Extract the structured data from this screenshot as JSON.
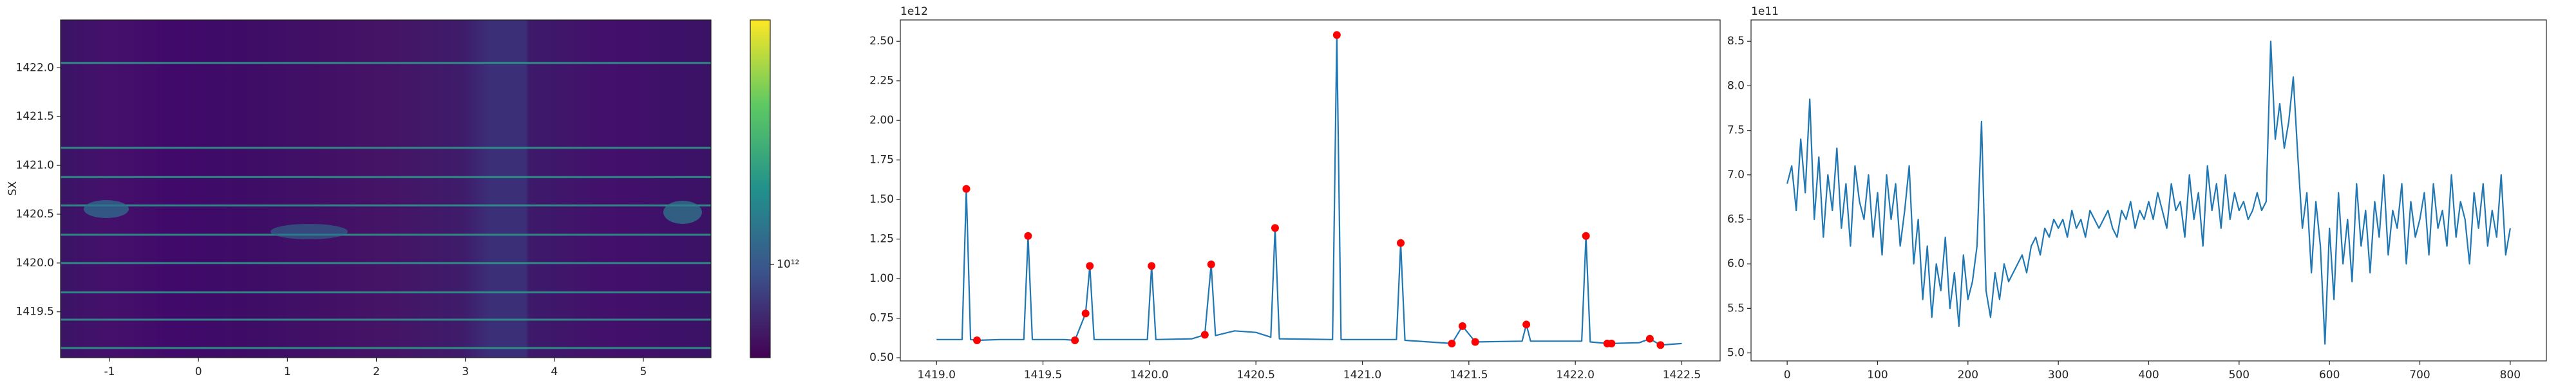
{
  "chart_data": [
    {
      "type": "heatmap",
      "ylabel": "SX",
      "xlim": [
        -1.55,
        5.76
      ],
      "ylim": [
        1419.03,
        1422.49
      ],
      "xticks": [
        -1,
        0,
        1,
        2,
        3,
        4,
        5
      ],
      "yticks": [
        1419.5,
        {
          "value": 1420.0,
          "label": "1420.0"
        },
        1420.5,
        {
          "value": 1421.0,
          "label": "1421.0"
        },
        1421.5,
        {
          "value": 1422.0,
          "label": "1422.0"
        }
      ],
      "lines": [
        1422.05,
        1421.18,
        1420.88,
        1420.59,
        1420.29,
        1420.0,
        1419.7,
        1419.42,
        1419.13
      ],
      "line_color": "#2f9c8c",
      "colorbar": {
        "log": true,
        "clim": [
          700000000000.0,
          2550000000000.0
        ],
        "ticks": [
          {
            "value": 1000000000000.0,
            "label": "10¹²"
          }
        ]
      }
    },
    {
      "type": "line",
      "offset_label": "1e12",
      "color": "#1f77b4",
      "xlim": [
        1418.83,
        1422.68
      ],
      "ylim": [
        0.48,
        2.635
      ],
      "xticks": [
        {
          "value": 1419.0,
          "label": "1419.0"
        },
        1419.5,
        {
          "value": 1420.0,
          "label": "1420.0"
        },
        1420.5,
        {
          "value": 1421.0,
          "label": "1421.0"
        },
        1421.5,
        {
          "value": 1422.0,
          "label": "1422.0"
        },
        1422.5
      ],
      "yticks": [
        {
          "value": 0.5,
          "label": "0.50"
        },
        0.75,
        {
          "value": 1.0,
          "label": "1.00"
        },
        1.25,
        {
          "value": 1.5,
          "label": "1.50"
        },
        1.75,
        {
          "value": 2.0,
          "label": "2.00"
        },
        2.25,
        {
          "value": 2.5,
          "label": "2.50"
        }
      ],
      "x": [
        1419.0,
        1419.12,
        1419.14,
        1419.16,
        1419.19,
        1419.3,
        1419.41,
        1419.43,
        1419.45,
        1419.6,
        1419.65,
        1419.7,
        1419.72,
        1419.74,
        1419.99,
        1420.01,
        1420.03,
        1420.2,
        1420.26,
        1420.29,
        1420.31,
        1420.4,
        1420.5,
        1420.57,
        1420.59,
        1420.61,
        1420.86,
        1420.88,
        1420.9,
        1421.16,
        1421.18,
        1421.2,
        1421.42,
        1421.47,
        1421.53,
        1421.75,
        1421.77,
        1421.79,
        1422.03,
        1422.05,
        1422.07,
        1422.15,
        1422.17,
        1422.3,
        1422.35,
        1422.4,
        1422.5
      ],
      "values": [
        0.615,
        0.615,
        1.567,
        0.615,
        0.61,
        0.615,
        0.615,
        1.27,
        0.615,
        0.615,
        0.61,
        0.78,
        1.08,
        0.615,
        0.615,
        1.08,
        0.615,
        0.62,
        0.645,
        1.09,
        0.64,
        0.67,
        0.66,
        0.63,
        1.32,
        0.62,
        0.615,
        2.54,
        0.615,
        0.615,
        1.225,
        0.61,
        0.59,
        0.7,
        0.6,
        0.605,
        0.71,
        0.605,
        0.605,
        1.27,
        0.6,
        0.59,
        0.59,
        0.595,
        0.62,
        0.58,
        0.59
      ],
      "markers": {
        "color": "#ff0000",
        "x": [
          1419.14,
          1419.19,
          1419.43,
          1419.65,
          1419.7,
          1419.72,
          1420.01,
          1420.26,
          1420.29,
          1420.59,
          1420.88,
          1421.18,
          1421.42,
          1421.47,
          1421.53,
          1421.77,
          1422.05,
          1422.15,
          1422.17,
          1422.35,
          1422.4
        ],
        "values": [
          1.567,
          0.61,
          1.27,
          0.61,
          0.78,
          1.08,
          1.08,
          0.645,
          1.09,
          1.32,
          2.54,
          1.225,
          0.59,
          0.7,
          0.6,
          0.71,
          1.27,
          0.59,
          0.59,
          0.62,
          0.58
        ]
      }
    },
    {
      "type": "line",
      "offset_label": "1e11",
      "color": "#1f77b4",
      "xlim": [
        -40,
        840
      ],
      "ylim": [
        4.91,
        8.74
      ],
      "xticks": [
        0,
        100,
        200,
        300,
        400,
        500,
        600,
        700,
        800
      ],
      "yticks": [
        {
          "value": 5.0,
          "label": "5.0"
        },
        5.5,
        {
          "value": 6.0,
          "label": "6.0"
        },
        6.5,
        {
          "value": 7.0,
          "label": "7.0"
        },
        7.5,
        {
          "value": 8.0,
          "label": "8.0"
        },
        8.5
      ],
      "x": [
        0,
        5,
        10,
        15,
        20,
        25,
        30,
        35,
        40,
        45,
        50,
        55,
        60,
        65,
        70,
        75,
        80,
        85,
        90,
        95,
        100,
        105,
        110,
        115,
        120,
        125,
        130,
        135,
        140,
        145,
        150,
        155,
        160,
        165,
        170,
        175,
        180,
        185,
        190,
        195,
        200,
        205,
        210,
        215,
        220,
        225,
        230,
        235,
        240,
        245,
        250,
        255,
        260,
        265,
        270,
        275,
        280,
        285,
        290,
        295,
        300,
        305,
        310,
        315,
        320,
        325,
        330,
        335,
        340,
        345,
        350,
        355,
        360,
        365,
        370,
        375,
        380,
        385,
        390,
        395,
        400,
        405,
        410,
        415,
        420,
        425,
        430,
        435,
        440,
        445,
        450,
        455,
        460,
        465,
        470,
        475,
        480,
        485,
        490,
        495,
        500,
        505,
        510,
        515,
        520,
        525,
        530,
        535,
        540,
        545,
        550,
        555,
        560,
        565,
        570,
        575,
        580,
        585,
        590,
        595,
        600,
        605,
        610,
        615,
        620,
        625,
        630,
        635,
        640,
        645,
        650,
        655,
        660,
        665,
        670,
        675,
        680,
        685,
        690,
        695,
        700,
        705,
        710,
        715,
        720,
        725,
        730,
        735,
        740,
        745,
        750,
        755,
        760,
        765,
        770,
        775,
        780,
        785,
        790,
        795,
        800
      ],
      "values": [
        6.9,
        7.1,
        6.6,
        7.4,
        6.8,
        7.85,
        6.5,
        7.2,
        6.3,
        7.0,
        6.6,
        7.3,
        6.4,
        6.9,
        6.2,
        7.1,
        6.7,
        6.5,
        7.0,
        6.3,
        6.8,
        6.1,
        7.0,
        6.5,
        6.9,
        6.2,
        6.6,
        7.1,
        6.0,
        6.5,
        5.6,
        6.2,
        5.4,
        6.0,
        5.7,
        6.3,
        5.5,
        5.9,
        5.3,
        6.1,
        5.6,
        5.8,
        6.2,
        7.6,
        5.7,
        5.4,
        5.9,
        5.6,
        6.0,
        5.8,
        5.9,
        6.0,
        6.1,
        5.9,
        6.2,
        6.3,
        6.1,
        6.4,
        6.3,
        6.5,
        6.4,
        6.5,
        6.3,
        6.6,
        6.4,
        6.5,
        6.3,
        6.6,
        6.5,
        6.4,
        6.5,
        6.6,
        6.4,
        6.3,
        6.6,
        6.5,
        6.7,
        6.4,
        6.6,
        6.5,
        6.7,
        6.5,
        6.8,
        6.6,
        6.4,
        6.9,
        6.6,
        6.7,
        6.3,
        7.0,
        6.5,
        6.8,
        6.2,
        7.1,
        6.6,
        6.9,
        6.4,
        7.0,
        6.5,
        6.8,
        6.6,
        6.7,
        6.5,
        6.6,
        6.8,
        6.6,
        6.7,
        8.5,
        7.4,
        7.8,
        7.3,
        7.6,
        8.1,
        7.2,
        6.4,
        6.8,
        5.9,
        6.7,
        6.2,
        5.1,
        6.4,
        5.6,
        6.8,
        6.0,
        6.5,
        5.8,
        6.9,
        6.2,
        6.6,
        5.9,
        6.7,
        6.3,
        7.0,
        6.1,
        6.6,
        6.4,
        6.9,
        6.0,
        6.7,
        6.3,
        6.5,
        6.8,
        6.1,
        6.9,
        6.4,
        6.6,
        6.2,
        7.0,
        6.3,
        6.7,
        6.5,
        6.0,
        6.8,
        6.4,
        6.9,
        6.2,
        6.6,
        6.3,
        7.0,
        6.1,
        6.4
      ]
    }
  ]
}
